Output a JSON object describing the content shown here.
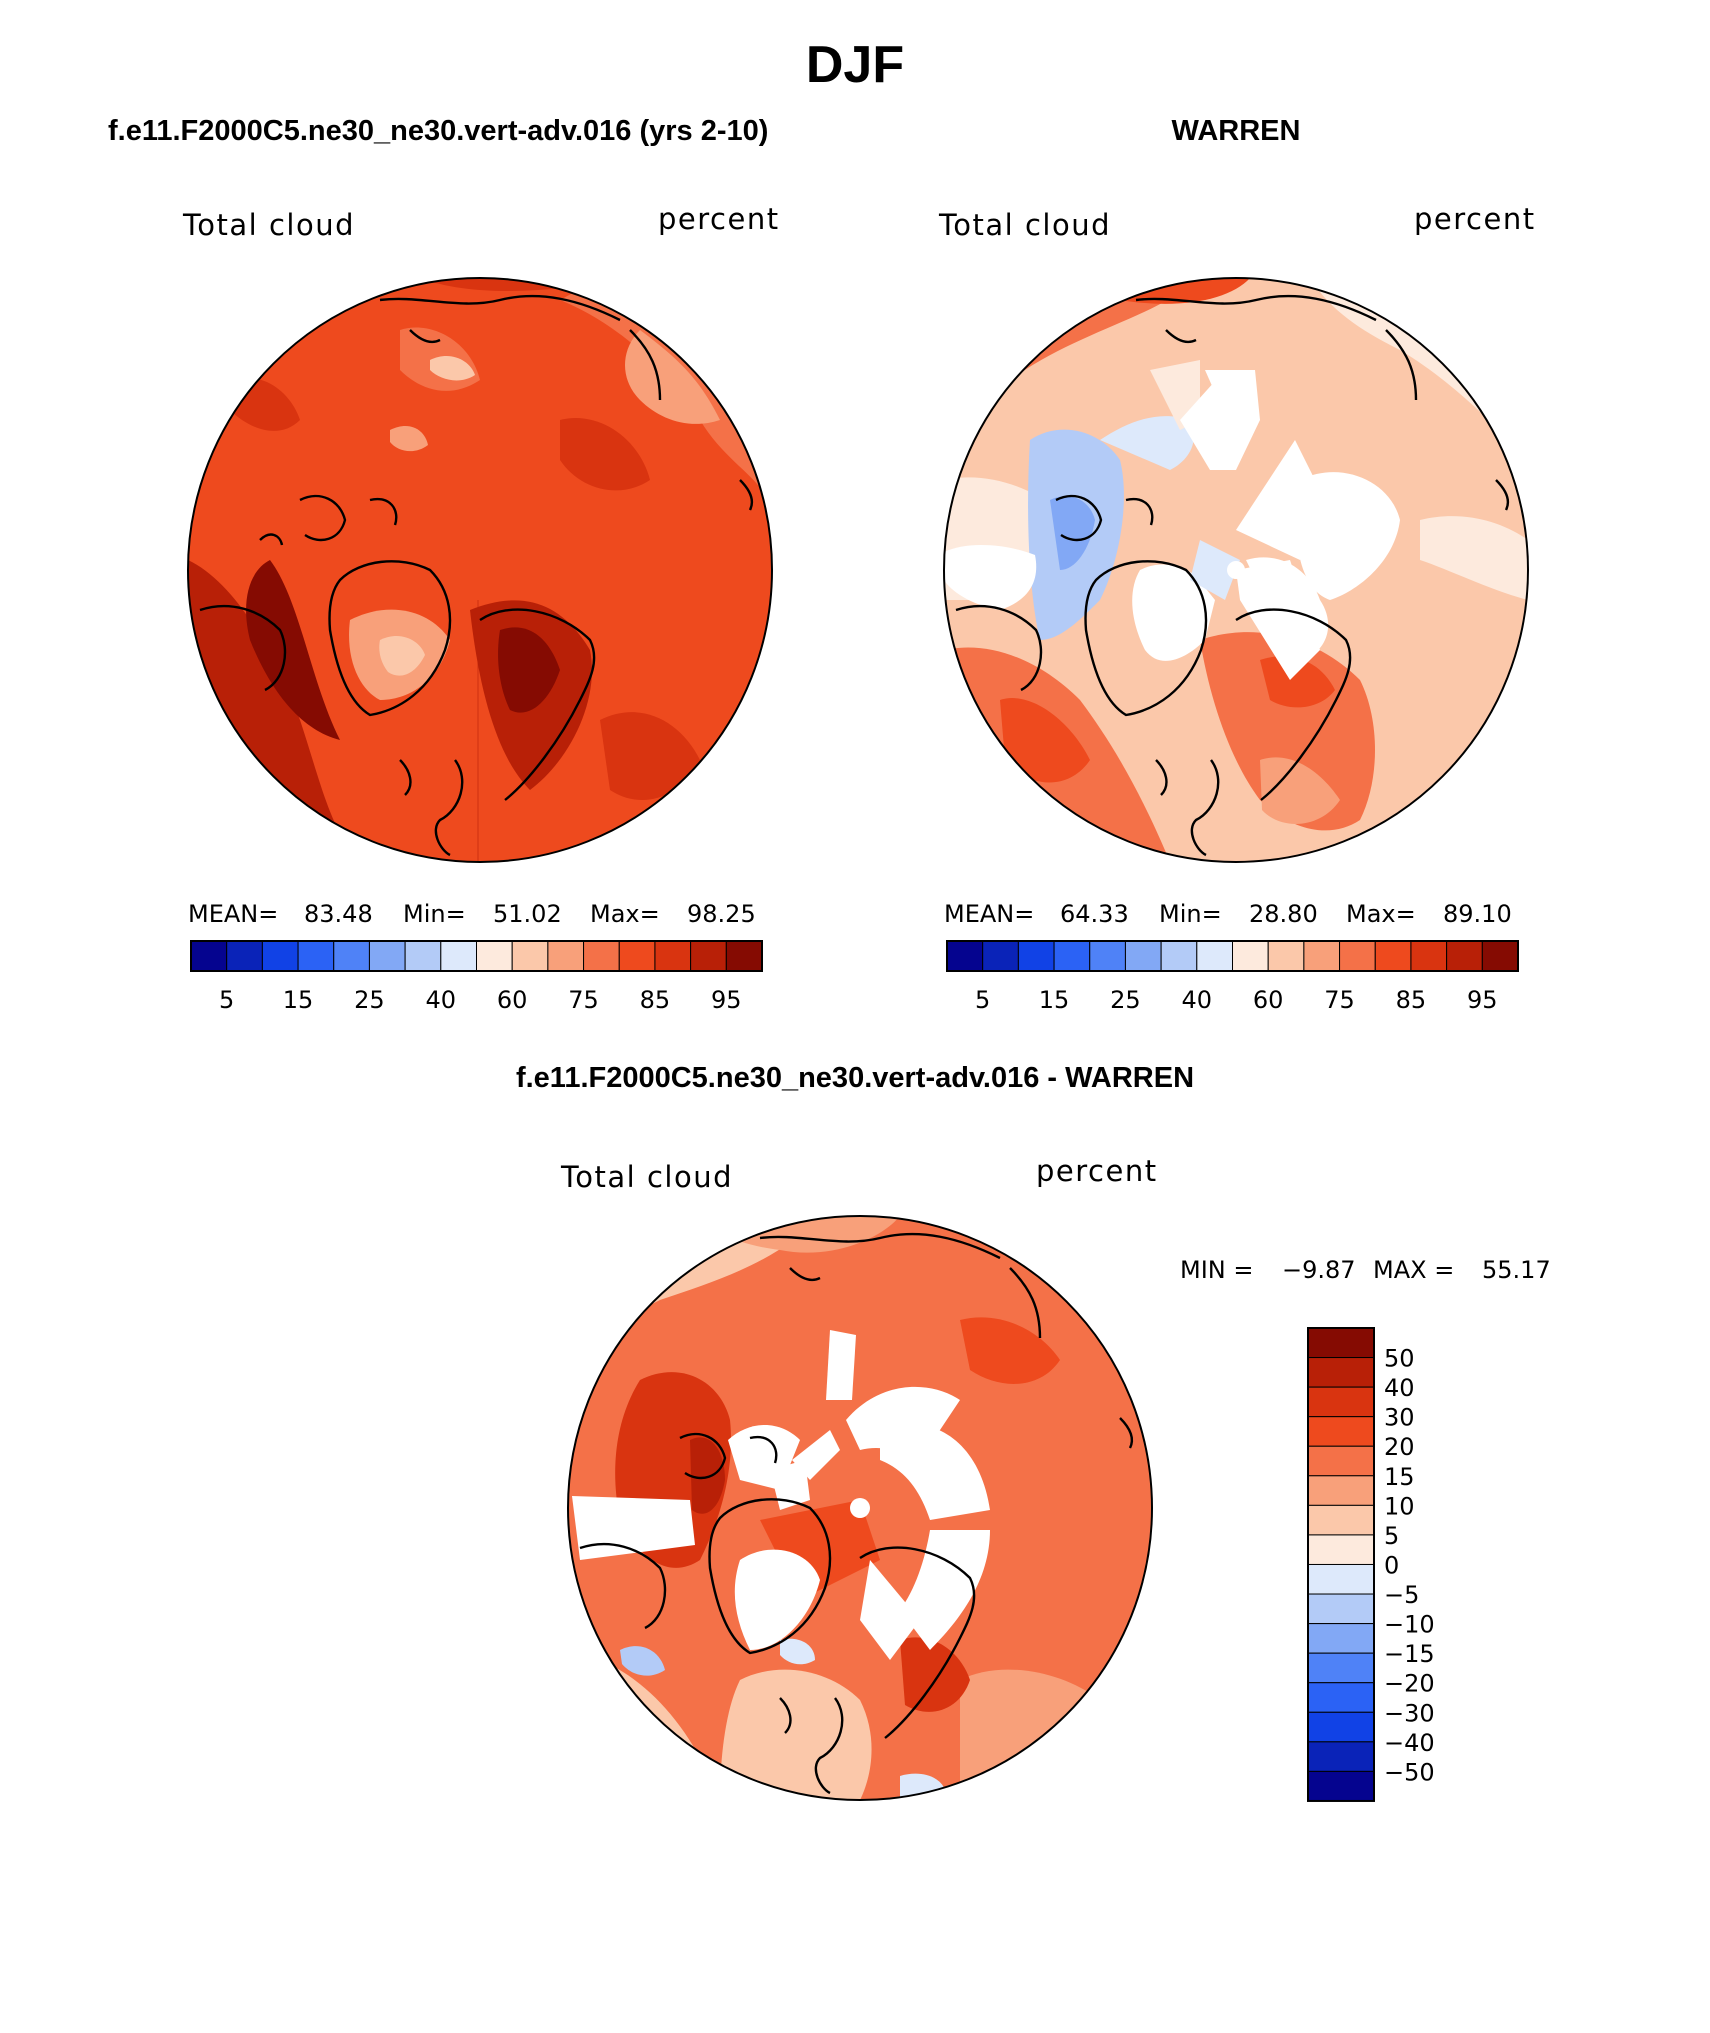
{
  "title": "DJF",
  "panels": [
    {
      "id": "model",
      "heading": "f.e11.F2000C5.ne30_ne30.vert-adv.016 (yrs 2-10)",
      "variable": "Total cloud",
      "units": "percent",
      "stats": {
        "mean_label": "MEAN=",
        "mean": "83.48",
        "min_label": "Min=",
        "min": "51.02",
        "max_label": "Max=",
        "max": "98.25"
      },
      "colorbar_ticks": [
        "5",
        "15",
        "25",
        "40",
        "60",
        "75",
        "85",
        "95"
      ]
    },
    {
      "id": "obs",
      "heading": "WARREN",
      "variable": "Total cloud",
      "units": "percent",
      "stats": {
        "mean_label": "MEAN=",
        "mean": "64.33",
        "min_label": "Min=",
        "min": "28.80",
        "max_label": "Max=",
        "max": "89.10"
      },
      "colorbar_ticks": [
        "5",
        "15",
        "25",
        "40",
        "60",
        "75",
        "85",
        "95"
      ]
    },
    {
      "id": "diff",
      "heading": "f.e11.F2000C5.ne30_ne30.vert-adv.016 - WARREN",
      "variable": "Total cloud",
      "units": "percent",
      "minmax": {
        "min_label": "MIN =",
        "min": "−9.87",
        "max_label": "MAX =",
        "max": "55.17"
      },
      "colorbar_ticks": [
        "50",
        "40",
        "30",
        "20",
        "15",
        "10",
        "5",
        "0",
        "−5",
        "−10",
        "−15",
        "−20",
        "−30",
        "−40",
        "−50"
      ]
    }
  ],
  "colors": {
    "abs_scale": [
      "#05048f",
      "#0a23b8",
      "#1142e6",
      "#2b62f5",
      "#4f82f7",
      "#82a8f5",
      "#b3cbf7",
      "#dde9fb",
      "#fdeadd",
      "#fbc8aa",
      "#f8a07a",
      "#f47148",
      "#ee4a1e",
      "#d93410",
      "#b82007",
      "#850b02"
    ],
    "diff_scale_top_down": [
      "#850b02",
      "#b82007",
      "#d93410",
      "#ee4a1e",
      "#f47148",
      "#f8a07a",
      "#fbc8aa",
      "#fdeadd",
      "#dde9fb",
      "#b3cbf7",
      "#82a8f5",
      "#4f82f7",
      "#2b62f5",
      "#1142e6",
      "#0a23b8",
      "#05048f"
    ],
    "map_model_base": "#ee4a1e",
    "map_obs_base": "#fbc8aa",
    "map_diff_base": "#f47148",
    "missing": "#ffffff",
    "coastline": "#000000"
  }
}
